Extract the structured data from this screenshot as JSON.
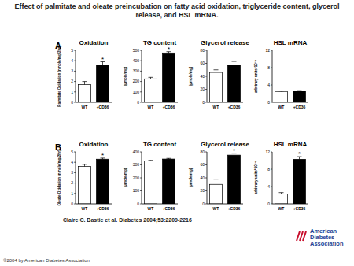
{
  "title": "Effect of palmitate and oleate preincubation on fatty acid oxidation, triglyceride content, glycerol release, and HSL mRNA.",
  "panel_labels": [
    "A",
    "B"
  ],
  "citation": "Claire C. Bastie et al. Diabetes 2004;53:2209-2216",
  "copyright": "©2004 by American Diabetes Association",
  "publisher": "American Diabetes Association",
  "chart_data": [
    {
      "type": "bar",
      "title": "Oxidation",
      "y_label": "Palmitate Oxidation (nmole/mg/2hr)",
      "categories": [
        "WT",
        "+CD36"
      ],
      "values": [
        1.7,
        3.6
      ],
      "errors": [
        0.3,
        0.3
      ],
      "colors": [
        "#ffffff",
        "#000000"
      ],
      "ylim": [
        0,
        5
      ],
      "yticks": [
        0,
        1,
        2,
        3,
        4,
        5
      ],
      "annotations": [
        {
          "text": "*",
          "x": "+CD36"
        }
      ]
    },
    {
      "type": "bar",
      "title": "TG content",
      "y_label": "(µmole/mg)",
      "categories": [
        "WT",
        "+CD36"
      ],
      "values": [
        225,
        475
      ],
      "errors": [
        15,
        12
      ],
      "colors": [
        "#ffffff",
        "#000000"
      ],
      "ylim": [
        0,
        500
      ],
      "yticks": [
        0,
        100,
        200,
        300,
        400,
        500
      ],
      "annotations": [
        {
          "text": "*",
          "x": "+CD36"
        }
      ]
    },
    {
      "type": "bar",
      "title": "Glycerol release",
      "y_label": "(µmole/mg)",
      "categories": [
        "WT",
        "+CD36"
      ],
      "values": [
        46,
        57
      ],
      "errors": [
        4,
        6
      ],
      "colors": [
        "#ffffff",
        "#000000"
      ],
      "ylim": [
        0,
        80
      ],
      "yticks": [
        0,
        20,
        40,
        60,
        80
      ]
    },
    {
      "type": "bar",
      "title": "HSL mRNA",
      "y_label": "arbitrary units*10⁻⁴",
      "categories": [
        "WT",
        "+CD36"
      ],
      "values": [
        2.5,
        2.6
      ],
      "errors": [
        0.1,
        0.1
      ],
      "colors": [
        "#ffffff",
        "#000000"
      ],
      "ylim": [
        0,
        12
      ],
      "yticks": [
        0,
        4,
        8,
        12
      ]
    },
    {
      "type": "bar",
      "title": "Oxidation",
      "y_label": "Oleate Oxidation (nmole/mg/2hr)",
      "categories": [
        "WT",
        "+CD36"
      ],
      "values": [
        3.6,
        4.3
      ],
      "errors": [
        0.2,
        0.1
      ],
      "colors": [
        "#ffffff",
        "#000000"
      ],
      "ylim": [
        0,
        5
      ],
      "yticks": [
        0,
        1,
        2,
        3,
        4,
        5
      ],
      "annotations": [
        {
          "text": "*",
          "x": "+CD36"
        }
      ]
    },
    {
      "type": "bar",
      "title": "TG content",
      "y_label": "(µmole/mg)",
      "categories": [
        "WT",
        "+CD36"
      ],
      "values": [
        330,
        345
      ],
      "errors": [
        5,
        5
      ],
      "colors": [
        "#ffffff",
        "#000000"
      ],
      "ylim": [
        0,
        400
      ],
      "yticks": [
        0,
        100,
        200,
        300,
        400
      ]
    },
    {
      "type": "bar",
      "title": "Glycerol release",
      "y_label": "(µmole/mg)",
      "categories": [
        "WT",
        "+CD36"
      ],
      "values": [
        30,
        75
      ],
      "errors": [
        8,
        3
      ],
      "colors": [
        "#ffffff",
        "#000000"
      ],
      "ylim": [
        0,
        80
      ],
      "yticks": [
        0,
        20,
        40,
        60,
        80
      ],
      "annotations": [
        {
          "text": "*",
          "x": "+CD36"
        }
      ]
    },
    {
      "type": "bar",
      "title": "HSL mRNA",
      "y_label": "arbitrary units*10⁻⁴",
      "categories": [
        "WT",
        "+CD36"
      ],
      "values": [
        2.3,
        10.3
      ],
      "errors": [
        0.3,
        0.6
      ],
      "colors": [
        "#ffffff",
        "#000000"
      ],
      "ylim": [
        0,
        12
      ],
      "yticks": [
        0,
        4,
        8,
        12
      ],
      "annotations": [
        {
          "text": "*",
          "x": "+CD36"
        }
      ]
    }
  ]
}
